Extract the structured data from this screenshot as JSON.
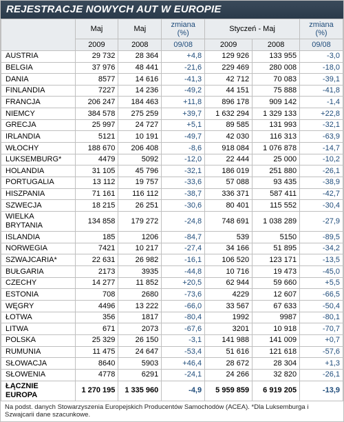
{
  "title": "REJESTRACJE NOWYCH AUT W EUROPIE",
  "header": {
    "group1_col1": "Maj",
    "group1_col2": "Maj",
    "group1_change": "zmiana (%)",
    "group2": "Styczeń - Maj",
    "group2_change": "zmiana (%)",
    "sub1": "2009",
    "sub2": "2008",
    "sub3": "09/08",
    "sub4": "2009",
    "sub5": "2008",
    "sub6": "09/08"
  },
  "rows": [
    {
      "c": "AUSTRIA",
      "m09": "29 732",
      "m08": "28 364",
      "mc": "+4,8",
      "y09": "129 926",
      "y08": "133 955",
      "yc": "-3,0"
    },
    {
      "c": "BELGIA",
      "m09": "37 976",
      "m08": "48 441",
      "mc": "-21,6",
      "y09": "229 469",
      "y08": "280 008",
      "yc": "-18,0"
    },
    {
      "c": "DANIA",
      "m09": "8577",
      "m08": "14 616",
      "mc": "-41,3",
      "y09": "42 712",
      "y08": "70 083",
      "yc": "-39,1"
    },
    {
      "c": "FINLANDIA",
      "m09": "7227",
      "m08": "14 236",
      "mc": "-49,2",
      "y09": "44 151",
      "y08": "75 888",
      "yc": "-41,8"
    },
    {
      "c": "FRANCJA",
      "m09": "206 247",
      "m08": "184 463",
      "mc": "+11,8",
      "y09": "896 178",
      "y08": "909 142",
      "yc": "-1,4"
    },
    {
      "c": "NIEMCY",
      "m09": "384 578",
      "m08": "275 259",
      "mc": "+39,7",
      "y09": "1 632 294",
      "y08": "1 329 133",
      "yc": "+22,8"
    },
    {
      "c": "GRECJA",
      "m09": "25 997",
      "m08": "24 727",
      "mc": "+5,1",
      "y09": "89 585",
      "y08": "131 993",
      "yc": "-32,1"
    },
    {
      "c": "IRLANDIA",
      "m09": "5121",
      "m08": "10 191",
      "mc": "-49,7",
      "y09": "42 030",
      "y08": "116 313",
      "yc": "-63,9"
    },
    {
      "c": "WŁOCHY",
      "m09": "188 670",
      "m08": "206 408",
      "mc": "-8,6",
      "y09": "918 084",
      "y08": "1 076 878",
      "yc": "-14,7"
    },
    {
      "c": "LUKSEMBURG*",
      "m09": "4479",
      "m08": "5092",
      "mc": "-12,0",
      "y09": "22 444",
      "y08": "25 000",
      "yc": "-10,2"
    },
    {
      "c": "HOLANDIA",
      "m09": "31 105",
      "m08": "45 796",
      "mc": "-32,1",
      "y09": "186 019",
      "y08": "251 880",
      "yc": "-26,1"
    },
    {
      "c": "PORTUGALIA",
      "m09": "13 112",
      "m08": "19 757",
      "mc": "-33,6",
      "y09": "57 088",
      "y08": "93 435",
      "yc": "-38,9"
    },
    {
      "c": "HISZPANIA",
      "m09": "71 161",
      "m08": "116 112",
      "mc": "-38,7",
      "y09": "336 371",
      "y08": "587 411",
      "yc": "-42,7"
    },
    {
      "c": "SZWECJA",
      "m09": "18 215",
      "m08": "26 251",
      "mc": "-30,6",
      "y09": "80 401",
      "y08": "115 552",
      "yc": "-30,4"
    },
    {
      "c": "WIELKA BRYTANIA",
      "m09": "134 858",
      "m08": "179 272",
      "mc": "-24,8",
      "y09": "748 691",
      "y08": "1 038 289",
      "yc": "-27,9"
    },
    {
      "c": "ISLANDIA",
      "m09": "185",
      "m08": "1206",
      "mc": "-84,7",
      "y09": "539",
      "y08": "5150",
      "yc": "-89,5"
    },
    {
      "c": "NORWEGIA",
      "m09": "7421",
      "m08": "10 217",
      "mc": "-27,4",
      "y09": "34 166",
      "y08": "51 895",
      "yc": "-34,2"
    },
    {
      "c": "SZWAJCARIA*",
      "m09": "22 631",
      "m08": "26 982",
      "mc": "-16,1",
      "y09": "106 520",
      "y08": "123 171",
      "yc": "-13,5"
    },
    {
      "c": "BUŁGARIA",
      "m09": "2173",
      "m08": "3935",
      "mc": "-44,8",
      "y09": "10 716",
      "y08": "19 473",
      "yc": "-45,0"
    },
    {
      "c": "CZECHY",
      "m09": "14 277",
      "m08": "11 852",
      "mc": "+20,5",
      "y09": "62 944",
      "y08": "59 660",
      "yc": "+5,5"
    },
    {
      "c": "ESTONIA",
      "m09": "708",
      "m08": "2680",
      "mc": "-73,6",
      "y09": "4229",
      "y08": "12 607",
      "yc": "-66,5"
    },
    {
      "c": "WĘGRY",
      "m09": "4496",
      "m08": "13 222",
      "mc": "-66,0",
      "y09": "33 567",
      "y08": "67 633",
      "yc": "-50,4"
    },
    {
      "c": "ŁOTWA",
      "m09": "356",
      "m08": "1817",
      "mc": "-80,4",
      "y09": "1992",
      "y08": "9987",
      "yc": "-80,1"
    },
    {
      "c": "LITWA",
      "m09": "671",
      "m08": "2073",
      "mc": "-67,6",
      "y09": "3201",
      "y08": "10 918",
      "yc": "-70,7"
    },
    {
      "c": "POLSKA",
      "m09": "25 329",
      "m08": "26 150",
      "mc": "-3,1",
      "y09": "141 988",
      "y08": "141 009",
      "yc": "+0,7"
    },
    {
      "c": "RUMUNIA",
      "m09": "11 475",
      "m08": "24 647",
      "mc": "-53,4",
      "y09": "51 616",
      "y08": "121 618",
      "yc": "-57,6"
    },
    {
      "c": "SŁOWACJA",
      "m09": "8640",
      "m08": "5903",
      "mc": "+46,4",
      "y09": "28 672",
      "y08": "28 304",
      "yc": "+1,3"
    },
    {
      "c": "SŁOWENIA",
      "m09": "4778",
      "m08": "6291",
      "mc": "-24,1",
      "y09": "24 266",
      "y08": "32 820",
      "yc": "-26,1"
    }
  ],
  "total": {
    "c": "ŁĄCZNIE EUROPA",
    "m09": "1 270 195",
    "m08": "1 335 960",
    "mc": "-4,9",
    "y09": "5 959 859",
    "y08": "6 919 205",
    "yc": "-13,9"
  },
  "footnote": "Na podst. danych Stowarzyszenia Europejskich Producentów Samochodów (ACEA). *Dla Luksemburga i Szwajcarii dane szacunkowe."
}
